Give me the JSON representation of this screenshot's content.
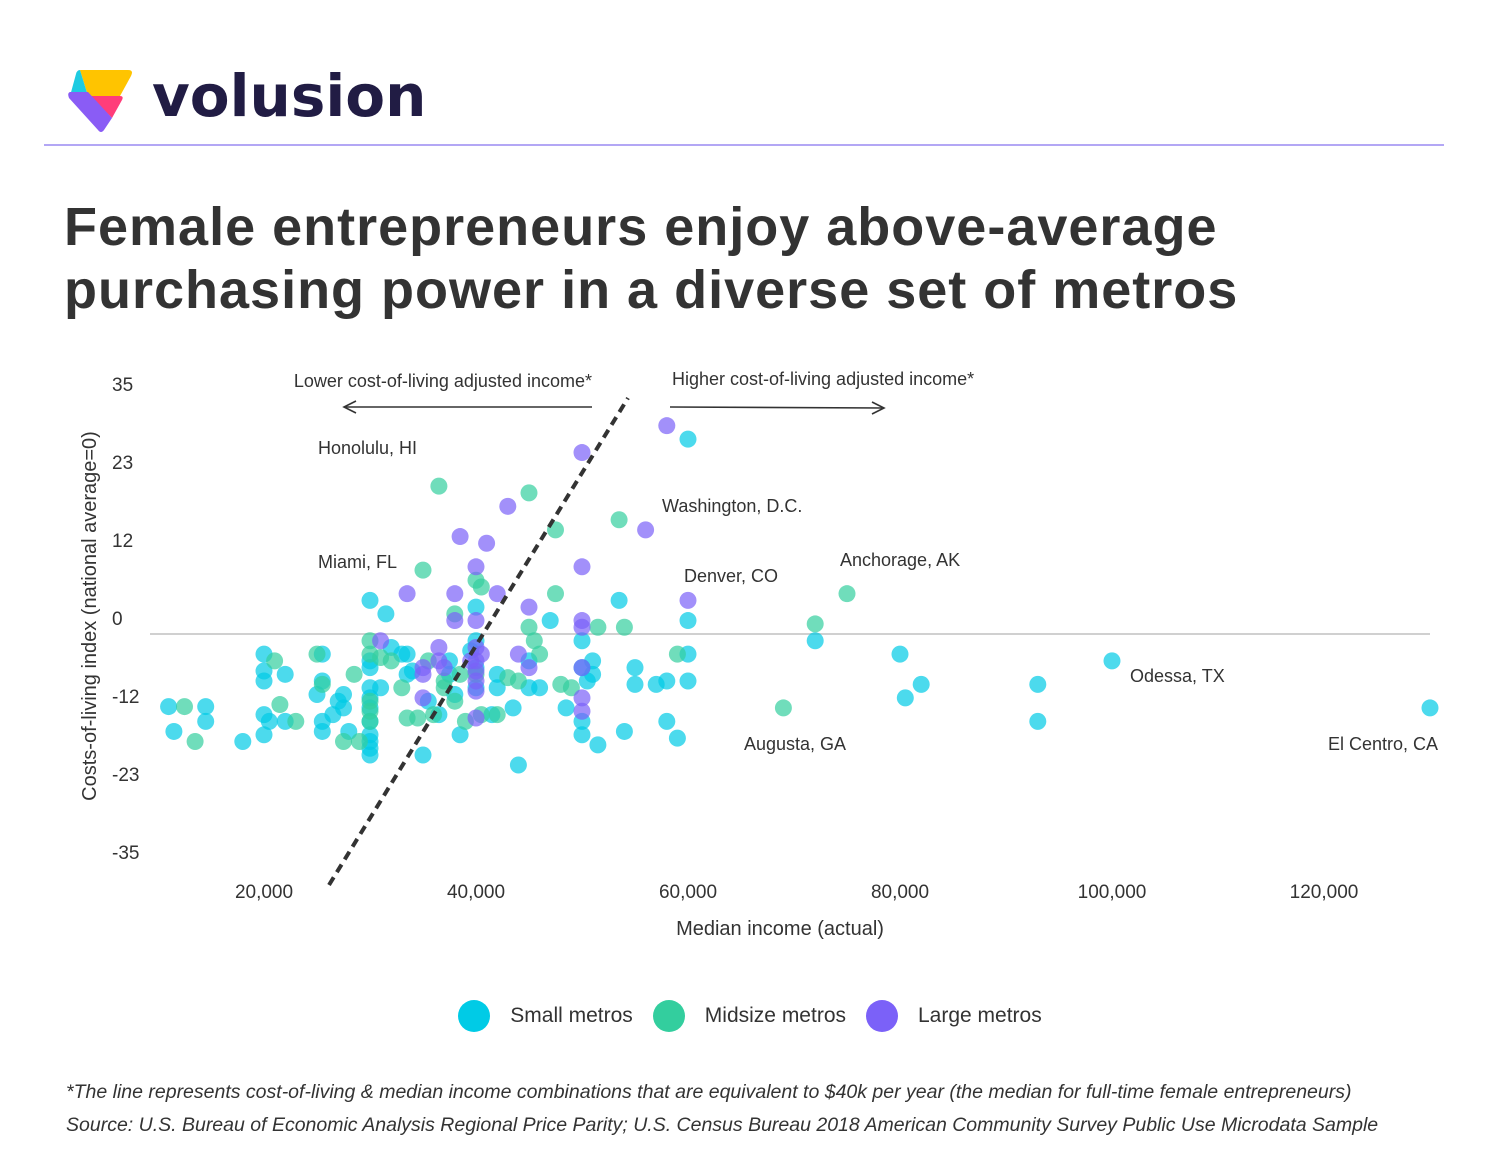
{
  "brand": {
    "name": "volusion",
    "logo_icon": "volusion-logo-icon",
    "colors": {
      "yellow": "#ffc400",
      "cyan": "#1ecbe1",
      "pink": "#ff3d7a",
      "purple": "#8a5cf5",
      "text": "#211c44",
      "rule": "#b3a7f5"
    }
  },
  "title": "Female entrepreneurs enjoy above-average purchasing power in a diverse set of metros",
  "chart_data": {
    "type": "scatter",
    "title": "Female entrepreneurs enjoy above-average purchasing power in a diverse set of metros",
    "xlabel": "Median income (actual)",
    "ylabel": "Costs-of-living index (national average=0)",
    "xlim": [
      10000,
      130000
    ],
    "ylim": [
      -35,
      35
    ],
    "x_ticks": [
      20000,
      40000,
      60000,
      80000,
      100000,
      120000
    ],
    "x_tick_labels": [
      "20,000",
      "40,000",
      "60,000",
      "80,000",
      "100,000",
      "120,000"
    ],
    "y_ticks": [
      35,
      23,
      12,
      0,
      -12,
      -23,
      -35
    ],
    "y_tick_labels": [
      "35",
      "23",
      "12",
      "0",
      "-12",
      "-23",
      "-35"
    ],
    "zero_line": true,
    "grid": false,
    "legend_position": "bottom-center",
    "series": [
      {
        "name": "Small metros",
        "color": "#00cbe6",
        "points": [
          [
            11000,
            -10.8
          ],
          [
            11500,
            -14.5
          ],
          [
            14500,
            -10.8
          ],
          [
            14500,
            -13
          ],
          [
            18000,
            -16
          ],
          [
            20000,
            -3
          ],
          [
            20000,
            -5.5
          ],
          [
            20000,
            -7
          ],
          [
            20000,
            -12
          ],
          [
            20000,
            -15
          ],
          [
            20500,
            -13
          ],
          [
            22000,
            -6
          ],
          [
            22000,
            -13
          ],
          [
            25000,
            -9
          ],
          [
            25500,
            -3
          ],
          [
            25500,
            -7
          ],
          [
            25500,
            -13
          ],
          [
            25500,
            -14.5
          ],
          [
            26500,
            -12
          ],
          [
            27000,
            -10
          ],
          [
            27500,
            -9
          ],
          [
            27500,
            -11
          ],
          [
            28000,
            -14.5
          ],
          [
            30000,
            -4
          ],
          [
            30000,
            -5
          ],
          [
            30000,
            -8
          ],
          [
            30000,
            -9.5
          ],
          [
            30000,
            -11
          ],
          [
            30000,
            -13
          ],
          [
            30000,
            -15
          ],
          [
            30000,
            -16
          ],
          [
            30000,
            -17
          ],
          [
            30000,
            -18
          ],
          [
            30000,
            5
          ],
          [
            31000,
            -8
          ],
          [
            31500,
            3
          ],
          [
            32000,
            -2
          ],
          [
            33000,
            -3
          ],
          [
            33500,
            -3
          ],
          [
            33500,
            -6
          ],
          [
            34000,
            -5.5
          ],
          [
            35000,
            -18
          ],
          [
            35500,
            -10
          ],
          [
            36500,
            -12
          ],
          [
            37500,
            -6
          ],
          [
            38000,
            -9
          ],
          [
            38500,
            -15
          ],
          [
            39500,
            -2.5
          ],
          [
            40000,
            -1
          ],
          [
            40000,
            4
          ],
          [
            40000,
            -5
          ],
          [
            41500,
            -12
          ],
          [
            42000,
            -6
          ],
          [
            42000,
            -8
          ],
          [
            43500,
            -11
          ],
          [
            44000,
            -19.5
          ],
          [
            45000,
            -8
          ],
          [
            45000,
            -4
          ],
          [
            46000,
            -8
          ],
          [
            47000,
            2
          ],
          [
            48500,
            -11
          ],
          [
            50000,
            -1
          ],
          [
            50000,
            -5
          ],
          [
            50000,
            -13
          ],
          [
            50000,
            -15
          ],
          [
            50500,
            -7
          ],
          [
            51000,
            -4
          ],
          [
            51500,
            -16.5
          ],
          [
            51000,
            -6
          ],
          [
            53500,
            5
          ],
          [
            54000,
            -14.5
          ],
          [
            55000,
            -5
          ],
          [
            55000,
            -7.5
          ],
          [
            57000,
            -7.5
          ],
          [
            58000,
            -13
          ],
          [
            58000,
            -7
          ],
          [
            59000,
            -15.5
          ],
          [
            60000,
            -7
          ],
          [
            60000,
            -3
          ],
          [
            60000,
            2
          ],
          [
            60000,
            29
          ],
          [
            72000,
            -1
          ],
          [
            80000,
            -3
          ],
          [
            80500,
            -9.5
          ],
          [
            82000,
            -7.5
          ],
          [
            93000,
            -7.5
          ],
          [
            93000,
            -13
          ],
          [
            100000,
            -4
          ],
          [
            130000,
            -11
          ],
          [
            37500,
            -4
          ],
          [
            40000,
            -8
          ]
        ]
      },
      {
        "name": "Midsize metros",
        "color": "#33ce9e",
        "points": [
          [
            12500,
            -10.8
          ],
          [
            13500,
            -16
          ],
          [
            21000,
            -4
          ],
          [
            21500,
            -10.5
          ],
          [
            23000,
            -13
          ],
          [
            25000,
            -3
          ],
          [
            25500,
            -7.5
          ],
          [
            27500,
            -16
          ],
          [
            28500,
            -6
          ],
          [
            29000,
            -16
          ],
          [
            30000,
            -1
          ],
          [
            30000,
            -3
          ],
          [
            30000,
            -10
          ],
          [
            30000,
            -11.5
          ],
          [
            30000,
            -13
          ],
          [
            31000,
            -3.5
          ],
          [
            32000,
            -4
          ],
          [
            33000,
            -8
          ],
          [
            33500,
            -12.5
          ],
          [
            34500,
            -12.5
          ],
          [
            35000,
            9.5
          ],
          [
            35500,
            -4
          ],
          [
            36000,
            -12
          ],
          [
            36500,
            22
          ],
          [
            37000,
            -8
          ],
          [
            38000,
            -10
          ],
          [
            38000,
            3
          ],
          [
            38500,
            -6
          ],
          [
            39000,
            -13
          ],
          [
            40000,
            8
          ],
          [
            40500,
            -12
          ],
          [
            40500,
            7
          ],
          [
            42000,
            -12
          ],
          [
            43000,
            -6.5
          ],
          [
            44000,
            -7
          ],
          [
            45000,
            21
          ],
          [
            45000,
            1
          ],
          [
            45500,
            -1
          ],
          [
            46000,
            -3
          ],
          [
            47500,
            6
          ],
          [
            47500,
            15.5
          ],
          [
            48000,
            -7.5
          ],
          [
            49000,
            -8
          ],
          [
            51500,
            1
          ],
          [
            53500,
            17
          ],
          [
            54000,
            1
          ],
          [
            59000,
            -3
          ],
          [
            69000,
            -11
          ],
          [
            72000,
            1.5
          ],
          [
            75000,
            6
          ],
          [
            37000,
            -7
          ],
          [
            40000,
            -6
          ]
        ]
      },
      {
        "name": "Large metros",
        "color": "#7b61f8",
        "points": [
          [
            31000,
            -1
          ],
          [
            33500,
            6
          ],
          [
            35000,
            -5
          ],
          [
            35000,
            -6
          ],
          [
            35000,
            -9.5
          ],
          [
            36500,
            -2
          ],
          [
            36500,
            -4
          ],
          [
            37000,
            -5
          ],
          [
            38000,
            6
          ],
          [
            38000,
            2
          ],
          [
            38500,
            14.5
          ],
          [
            39500,
            -4
          ],
          [
            40000,
            10
          ],
          [
            40000,
            -2
          ],
          [
            40000,
            -4
          ],
          [
            40000,
            -5.5
          ],
          [
            40000,
            -7
          ],
          [
            40000,
            -8.5
          ],
          [
            40000,
            2
          ],
          [
            40000,
            -12.5
          ],
          [
            41000,
            13.5
          ],
          [
            42000,
            6
          ],
          [
            43000,
            19
          ],
          [
            44000,
            -3
          ],
          [
            45000,
            4
          ],
          [
            45000,
            -5
          ],
          [
            50000,
            10
          ],
          [
            50000,
            2
          ],
          [
            50000,
            1
          ],
          [
            50000,
            -5
          ],
          [
            50000,
            -9.5
          ],
          [
            50000,
            -11.5
          ],
          [
            50000,
            27
          ],
          [
            56000,
            15.5
          ],
          [
            58000,
            31
          ],
          [
            60000,
            5
          ],
          [
            40500,
            -3
          ]
        ]
      }
    ],
    "annotations": [
      {
        "text": "Honolulu, HI"
      },
      {
        "text": "Miami, FL"
      },
      {
        "text": "Washington, D.C."
      },
      {
        "text": "Denver, CO"
      },
      {
        "text": "Anchorage, AK"
      },
      {
        "text": "Odessa, TX"
      },
      {
        "text": "Augusta, GA"
      },
      {
        "text": "El Centro, CA"
      }
    ],
    "direction_labels": {
      "left": "Lower cost-of-living adjusted income*",
      "right": "Higher cost-of-living adjusted income*"
    },
    "reference_line": {
      "style": "dashed",
      "description": "Cost-of-living & median income combinations equivalent to $40k per year",
      "points": [
        [
          26000,
          -38
        ],
        [
          55000,
          36
        ]
      ]
    }
  },
  "legend": [
    {
      "label": "Small metros",
      "color": "#00cbe6"
    },
    {
      "label": "Midsize metros",
      "color": "#33ce9e"
    },
    {
      "label": "Large metros",
      "color": "#7b61f8"
    }
  ],
  "footnote": "*The line represents cost-of-living & median income combinations that are equivalent to $40k per year (the median for full-time female entrepreneurs)",
  "source": "Source: U.S. Bureau of Economic Analysis Regional Price Parity; U.S. Census Bureau 2018 American Community Survey Public Use Microdata Sample"
}
